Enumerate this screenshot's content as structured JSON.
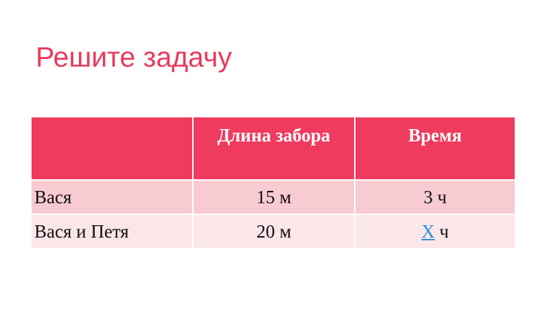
{
  "title": "Решите задачу",
  "table": {
    "headers": [
      "",
      "Длина забора",
      "Время"
    ],
    "rows": [
      {
        "name": "Вася",
        "length": "15 м",
        "time_value": "3",
        "time_unit": "ч"
      },
      {
        "name": "Вася и Петя",
        "length": "20 м",
        "time_value": "X",
        "time_unit": "ч"
      }
    ]
  },
  "colors": {
    "accent": "#ee3b5e",
    "row1": "#f8cad2",
    "row2": "#fbe6e9",
    "unknown": "#2a8fd8"
  }
}
